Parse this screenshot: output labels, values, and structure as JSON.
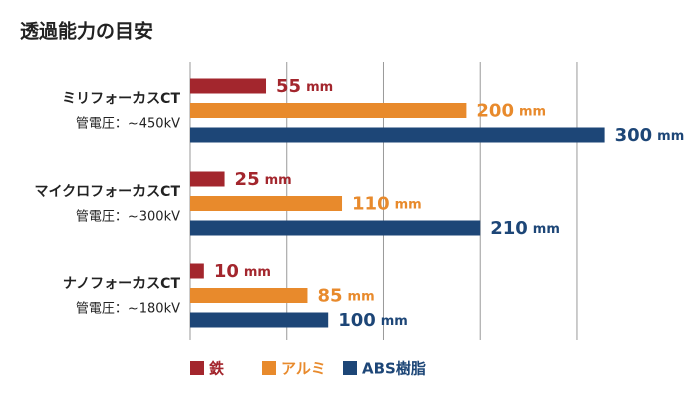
{
  "chart_data": {
    "type": "bar",
    "orientation": "horizontal",
    "title": "透過能力の目安",
    "categories": [
      "ミリフォーカスCT",
      "マイクロフォーカスCT",
      "ナノフォーカスCT"
    ],
    "category_notes": [
      "管電圧：~450kV",
      "管電圧：~300kV",
      "管電圧：~180kV"
    ],
    "unit": "mm",
    "series": [
      {
        "name": "鉄",
        "color": "#a3262d",
        "values": [
          55,
          25,
          10
        ]
      },
      {
        "name": "アルミ",
        "color": "#e88a2c",
        "values": [
          200,
          110,
          85
        ]
      },
      {
        "name": "ABS樹脂",
        "color": "#1d4677",
        "values": [
          300,
          210,
          100
        ]
      }
    ],
    "xlim": [
      0,
      350
    ],
    "xticks": [
      0,
      70,
      140,
      210,
      280
    ],
    "grid": true,
    "legend": "bottom"
  }
}
